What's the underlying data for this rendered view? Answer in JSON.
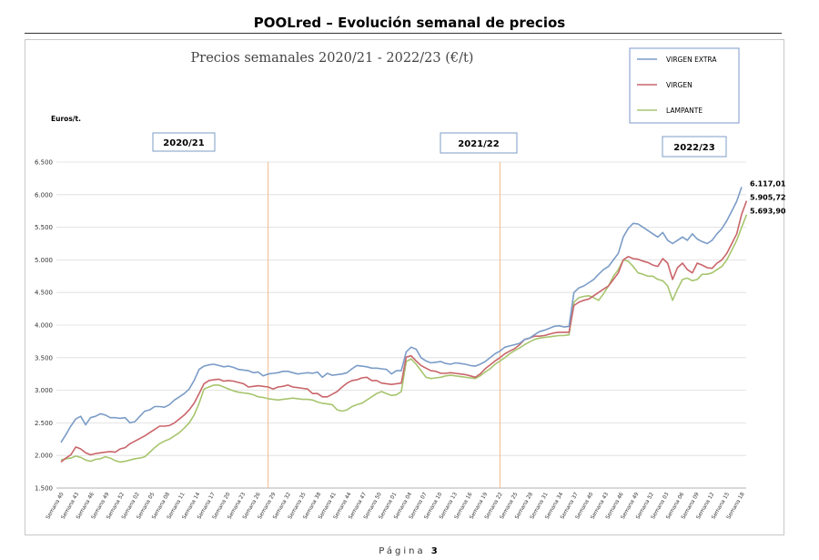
{
  "header": {
    "title": "POOLred – Evolución semanal de precios"
  },
  "footer": {
    "page_label": "Página",
    "page_number": "3"
  },
  "colors": {
    "virgen_extra": "#7b9cc7",
    "virgen": "#c9656a",
    "lampante": "#a7c56e",
    "separator": "#f0b98a"
  },
  "chart_data": {
    "type": "line",
    "title": "Precios semanales  2020/21 - 2022/23 (€/t)",
    "ylabel": "Euros/t.",
    "ylim": [
      1500,
      6500
    ],
    "yticks": [
      "1.500",
      "2.000",
      "2.500",
      "3.000",
      "3.500",
      "4.000",
      "4.500",
      "5.000",
      "5.500",
      "6.000",
      "6.500"
    ],
    "grid": "horizontal",
    "legend_position": "top-right",
    "campaigns": [
      "2020/21",
      "2021/22",
      "2022/23"
    ],
    "separators_after_week_index": [
      42,
      89
    ],
    "x_tick_labels": [
      "Semana 40",
      "Semana 43",
      "Semana 46",
      "Semana 49",
      "Semana 52",
      "Semana 02",
      "Semana 05",
      "Semana 08",
      "Semana 11",
      "Semana 14",
      "Semana 17",
      "Semana 20",
      "Semana 23",
      "Semana 26",
      "Semana 29",
      "Semana 32",
      "Semana 35",
      "Semana 38",
      "Semana 41",
      "Semana 44",
      "Semana 47",
      "Semana 50",
      "Semana 01",
      "Semana 04",
      "Semana 07",
      "Semana 10",
      "Semana 13",
      "Semana 16",
      "Semana 19",
      "Semana 22",
      "Semana 25",
      "Semana 28",
      "Semana 31",
      "Semana 34",
      "Semana 37",
      "Semana 40",
      "Semana 43",
      "Semana 46",
      "Semana 49",
      "Semana 52",
      "Semana 03",
      "Semana 06",
      "Semana 09",
      "Semana 12",
      "Semana 15",
      "Semana 18"
    ],
    "series": [
      {
        "name": "VIRGEN EXTRA",
        "end_label": "6.117,01",
        "values": [
          2200,
          2320,
          2450,
          2560,
          2600,
          2470,
          2580,
          2600,
          2640,
          2620,
          2580,
          2580,
          2570,
          2580,
          2500,
          2520,
          2600,
          2680,
          2700,
          2750,
          2750,
          2740,
          2780,
          2850,
          2900,
          2950,
          3020,
          3150,
          3320,
          3370,
          3390,
          3400,
          3380,
          3360,
          3370,
          3350,
          3320,
          3310,
          3300,
          3270,
          3280,
          3220,
          3250,
          3260,
          3270,
          3290,
          3290,
          3270,
          3250,
          3260,
          3270,
          3260,
          3280,
          3200,
          3260,
          3230,
          3240,
          3250,
          3270,
          3330,
          3380,
          3370,
          3360,
          3340,
          3340,
          3330,
          3320,
          3250,
          3300,
          3300,
          3590,
          3660,
          3630,
          3500,
          3450,
          3420,
          3430,
          3440,
          3410,
          3400,
          3420,
          3410,
          3400,
          3380,
          3370,
          3400,
          3440,
          3500,
          3560,
          3600,
          3660,
          3680,
          3700,
          3720,
          3780,
          3800,
          3850,
          3900,
          3920,
          3950,
          3980,
          3990,
          3970,
          3980,
          4500,
          4570,
          4600,
          4650,
          4700,
          4780,
          4850,
          4900,
          5000,
          5100,
          5350,
          5480,
          5560,
          5550,
          5500,
          5450,
          5400,
          5350,
          5420,
          5300,
          5250,
          5300,
          5350,
          5300,
          5400,
          5320,
          5280,
          5250,
          5300,
          5400,
          5480,
          5600,
          5750,
          5900,
          6117.01
        ]
      },
      {
        "name": "VIRGEN",
        "end_label": "5.905,72",
        "values": [
          1900,
          1960,
          2010,
          2130,
          2100,
          2040,
          2010,
          2030,
          2040,
          2050,
          2060,
          2050,
          2100,
          2120,
          2180,
          2220,
          2260,
          2300,
          2350,
          2400,
          2450,
          2450,
          2460,
          2500,
          2560,
          2620,
          2700,
          2800,
          2950,
          3100,
          3150,
          3160,
          3170,
          3140,
          3150,
          3140,
          3120,
          3100,
          3050,
          3060,
          3070,
          3060,
          3050,
          3020,
          3050,
          3060,
          3080,
          3050,
          3040,
          3030,
          3020,
          2950,
          2950,
          2900,
          2900,
          2940,
          2980,
          3050,
          3110,
          3150,
          3160,
          3190,
          3200,
          3150,
          3150,
          3110,
          3100,
          3090,
          3100,
          3110,
          3510,
          3530,
          3450,
          3380,
          3340,
          3300,
          3290,
          3260,
          3260,
          3270,
          3260,
          3250,
          3240,
          3220,
          3200,
          3250,
          3330,
          3390,
          3450,
          3500,
          3560,
          3600,
          3640,
          3700,
          3780,
          3800,
          3830,
          3830,
          3840,
          3860,
          3880,
          3890,
          3890,
          3890,
          4300,
          4350,
          4380,
          4400,
          4450,
          4500,
          4550,
          4600,
          4700,
          4800,
          5000,
          5050,
          5020,
          5010,
          4980,
          4960,
          4920,
          4900,
          5020,
          4950,
          4700,
          4880,
          4950,
          4850,
          4800,
          4950,
          4920,
          4880,
          4870,
          4950,
          5000,
          5100,
          5250,
          5400,
          5700,
          5905.72
        ]
      },
      {
        "name": "LAMPANTE",
        "end_label": "5.693,90",
        "values": [
          1930,
          1950,
          1960,
          1990,
          1970,
          1930,
          1910,
          1940,
          1950,
          1980,
          1960,
          1920,
          1900,
          1910,
          1930,
          1950,
          1960,
          1980,
          2050,
          2120,
          2180,
          2220,
          2250,
          2300,
          2350,
          2420,
          2500,
          2620,
          2800,
          3020,
          3050,
          3080,
          3080,
          3050,
          3020,
          2990,
          2970,
          2960,
          2950,
          2930,
          2900,
          2890,
          2870,
          2860,
          2850,
          2860,
          2870,
          2880,
          2870,
          2860,
          2860,
          2850,
          2820,
          2800,
          2790,
          2780,
          2700,
          2680,
          2700,
          2750,
          2780,
          2800,
          2850,
          2900,
          2950,
          2980,
          2950,
          2920,
          2930,
          2980,
          3440,
          3480,
          3400,
          3300,
          3200,
          3180,
          3190,
          3200,
          3220,
          3230,
          3220,
          3210,
          3200,
          3190,
          3180,
          3220,
          3280,
          3330,
          3400,
          3450,
          3500,
          3560,
          3610,
          3650,
          3700,
          3740,
          3780,
          3800,
          3810,
          3820,
          3830,
          3840,
          3840,
          3850,
          4350,
          4420,
          4440,
          4450,
          4420,
          4380,
          4480,
          4600,
          4750,
          4850,
          5000,
          4980,
          4900,
          4800,
          4780,
          4750,
          4750,
          4700,
          4680,
          4600,
          4380,
          4550,
          4700,
          4720,
          4680,
          4700,
          4780,
          4780,
          4800,
          4850,
          4900,
          5000,
          5150,
          5300,
          5500,
          5693.9
        ]
      }
    ]
  }
}
